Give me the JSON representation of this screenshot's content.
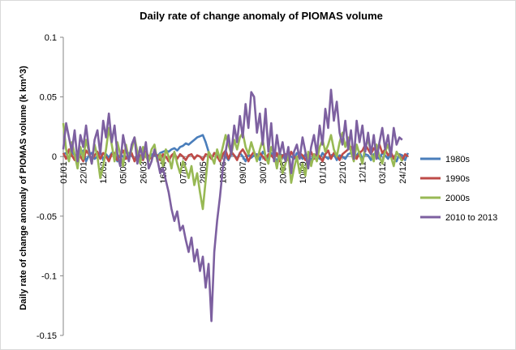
{
  "chart_data": {
    "type": "line",
    "title": "Daily rate of change anomaly of PIOMAS volume",
    "xlabel": "",
    "ylabel": "Daily rate of change anomaly of PIOMAS volume (k km^3)",
    "ylim": [
      -0.15,
      0.1
    ],
    "y_ticks": [
      "0.1",
      "0.05",
      "0",
      "-0.05",
      "-0.1",
      "-0.15"
    ],
    "x_tick_labels": [
      "01/01",
      "22/01",
      "12/02",
      "05/03",
      "26/03",
      "16/04",
      "07/05",
      "28/05",
      "18/06",
      "09/07",
      "30/07",
      "20/08",
      "10/09",
      "01/10",
      "22/10",
      "12/11",
      "03/12",
      "24/12"
    ],
    "grid": false,
    "legend_position": "right",
    "colors": {
      "1980s": "#4a7ebb",
      "1990s": "#be4b48",
      "2000s": "#98b954",
      "2010 to 2013": "#7d60a0"
    },
    "series": [
      {
        "name": "1980s",
        "x_start_day": 1,
        "x_step_days": 3,
        "values": [
          0.002,
          0.003,
          -0.002,
          0.004,
          0.001,
          -0.003,
          0.002,
          0.005,
          -0.004,
          0.001,
          0.003,
          -0.002,
          0.0,
          0.004,
          -0.003,
          0.002,
          -0.001,
          0.003,
          0.001,
          -0.004,
          0.002,
          0.0,
          -0.002,
          0.003,
          0.001,
          -0.003,
          0.002,
          -0.001,
          0.001,
          0.0,
          -0.002,
          0.002,
          0.001,
          0.0,
          0.003,
          0.004,
          0.005,
          0.004,
          0.006,
          0.007,
          0.005,
          0.008,
          0.009,
          0.011,
          0.01,
          0.012,
          0.014,
          0.016,
          0.017,
          0.018,
          0.012,
          0.004,
          -0.002,
          0.003,
          0.001,
          -0.004,
          0.002,
          0.0,
          -0.003,
          0.002,
          0.001,
          -0.002,
          0.003,
          0.0,
          -0.004,
          0.002,
          -0.001,
          0.001,
          0.002,
          -0.003,
          0.004,
          0.001,
          -0.002,
          0.003,
          0.0,
          -0.004,
          0.002,
          0.001,
          -0.003,
          0.002,
          0.0,
          -0.002,
          0.003,
          0.001,
          -0.002,
          0.002,
          0.0,
          -0.003,
          0.002,
          0.001,
          -0.002,
          0.003,
          0.0,
          -0.002,
          0.001,
          0.002,
          -0.003,
          0.001,
          0.0,
          -0.002,
          0.002,
          0.003,
          -0.001,
          0.001,
          0.004,
          -0.002,
          0.002,
          0.001,
          -0.003,
          0.002,
          0.0,
          -0.002,
          0.003,
          0.001,
          -0.002,
          0.002,
          0.0,
          -0.004,
          0.002,
          0.001,
          -0.003,
          0.003
        ]
      },
      {
        "name": "1990s",
        "x_start_day": 1,
        "x_step_days": 3,
        "values": [
          0.003,
          -0.002,
          0.006,
          0.001,
          -0.003,
          0.004,
          0.0,
          -0.004,
          0.005,
          0.002,
          -0.003,
          0.001,
          0.004,
          -0.002,
          0.003,
          0.0,
          -0.004,
          0.002,
          0.003,
          -0.003,
          0.001,
          0.005,
          -0.002,
          0.0,
          0.003,
          -0.004,
          0.002,
          0.001,
          -0.003,
          0.004,
          0.0,
          -0.002,
          0.003,
          0.001,
          -0.003,
          0.002,
          0.0,
          -0.004,
          0.001,
          0.003,
          -0.002,
          0.002,
          0.0,
          -0.003,
          0.001,
          0.002,
          -0.002,
          0.001,
          0.0,
          -0.003,
          0.002,
          0.001,
          -0.002,
          0.003,
          0.0,
          -0.004,
          0.002,
          0.005,
          -0.002,
          0.004,
          0.001,
          -0.003,
          0.003,
          0.006,
          0.002,
          -0.004,
          0.001,
          0.004,
          -0.002,
          0.003,
          0.0,
          -0.003,
          0.002,
          0.001,
          -0.002,
          0.003,
          -0.004,
          0.001,
          0.002,
          -0.003,
          0.004,
          0.0,
          -0.002,
          0.003,
          0.001,
          -0.003,
          0.002,
          0.004,
          -0.002,
          0.003,
          0.0,
          -0.004,
          0.002,
          0.005,
          -0.002,
          0.003,
          0.001,
          -0.003,
          0.002,
          0.004,
          0.006,
          0.008,
          0.004,
          -0.002,
          0.003,
          0.005,
          0.01,
          0.006,
          0.002,
          0.007,
          0.004,
          0.01,
          0.003,
          0.006,
          0.001,
          0.004,
          -0.002,
          0.003,
          0.001,
          -0.003,
          0.002,
          0.0
        ]
      },
      {
        "name": "2000s",
        "x_start_day": 1,
        "x_step_days": 3,
        "values": [
          0.028,
          0.006,
          -0.004,
          0.012,
          0.002,
          -0.01,
          0.008,
          -0.002,
          0.014,
          0.004,
          -0.006,
          0.01,
          0.0,
          -0.018,
          -0.008,
          0.006,
          0.024,
          0.01,
          -0.004,
          0.012,
          0.002,
          -0.008,
          0.01,
          -0.002,
          0.006,
          0.016,
          0.004,
          -0.006,
          0.008,
          0.0,
          -0.004,
          0.006,
          0.01,
          -0.004,
          0.002,
          -0.008,
          0.006,
          0.0,
          -0.01,
          0.004,
          -0.006,
          -0.014,
          -0.004,
          -0.01,
          -0.018,
          -0.008,
          -0.024,
          -0.014,
          -0.03,
          -0.044,
          -0.02,
          0.004,
          0.0,
          -0.006,
          0.006,
          -0.002,
          0.008,
          0.018,
          0.01,
          0.002,
          0.014,
          0.006,
          0.016,
          0.02,
          0.008,
          0.002,
          0.012,
          0.004,
          -0.004,
          0.006,
          0.014,
          0.0,
          -0.006,
          0.008,
          0.002,
          -0.01,
          0.004,
          -0.014,
          -0.006,
          0.002,
          -0.022,
          -0.01,
          0.0,
          -0.014,
          -0.006,
          -0.016,
          0.004,
          -0.008,
          0.002,
          -0.004,
          0.008,
          0.014,
          0.004,
          0.01,
          0.018,
          0.006,
          0.0,
          0.012,
          0.02,
          0.008,
          0.016,
          0.004,
          -0.004,
          0.01,
          0.002,
          -0.006,
          0.008,
          0.014,
          0.004,
          -0.004,
          0.01,
          0.0,
          -0.006,
          0.004,
          0.01,
          0.0,
          -0.008,
          0.004,
          0.0,
          -0.004
        ]
      },
      {
        "name": "2010 to 2013",
        "x_start_day": 1,
        "x_step_days": 3,
        "values": [
          0.006,
          0.028,
          0.016,
          0.004,
          0.022,
          -0.004,
          0.018,
          0.008,
          0.026,
          0.006,
          -0.006,
          0.014,
          0.022,
          0.002,
          0.03,
          0.016,
          0.036,
          0.012,
          0.026,
          0.002,
          -0.008,
          0.018,
          0.006,
          -0.004,
          0.01,
          0.016,
          -0.006,
          0.008,
          -0.002,
          0.012,
          -0.01,
          -0.004,
          0.006,
          -0.002,
          -0.014,
          -0.01,
          -0.02,
          -0.03,
          -0.044,
          -0.054,
          -0.046,
          -0.062,
          -0.058,
          -0.07,
          -0.08,
          -0.068,
          -0.088,
          -0.078,
          -0.096,
          -0.084,
          -0.11,
          -0.09,
          -0.138,
          -0.08,
          -0.054,
          -0.034,
          -0.01,
          0.004,
          0.018,
          0.002,
          0.026,
          0.012,
          0.034,
          0.016,
          0.044,
          0.024,
          0.054,
          0.05,
          0.02,
          0.036,
          0.01,
          0.04,
          0.004,
          0.028,
          -0.004,
          0.018,
          0.002,
          0.012,
          -0.004,
          0.008,
          -0.014,
          0.004,
          0.01,
          -0.002,
          0.016,
          0.004,
          -0.01,
          0.008,
          0.018,
          0.002,
          0.026,
          0.01,
          0.04,
          0.024,
          0.056,
          0.03,
          0.046,
          0.02,
          0.01,
          0.03,
          0.006,
          0.022,
          -0.002,
          0.03,
          0.012,
          0.026,
          0.004,
          0.02,
          0.002,
          0.018,
          -0.002,
          0.012,
          0.024,
          0.006,
          0.018,
          0.0,
          0.024,
          0.01,
          0.016,
          0.014
        ]
      }
    ]
  }
}
